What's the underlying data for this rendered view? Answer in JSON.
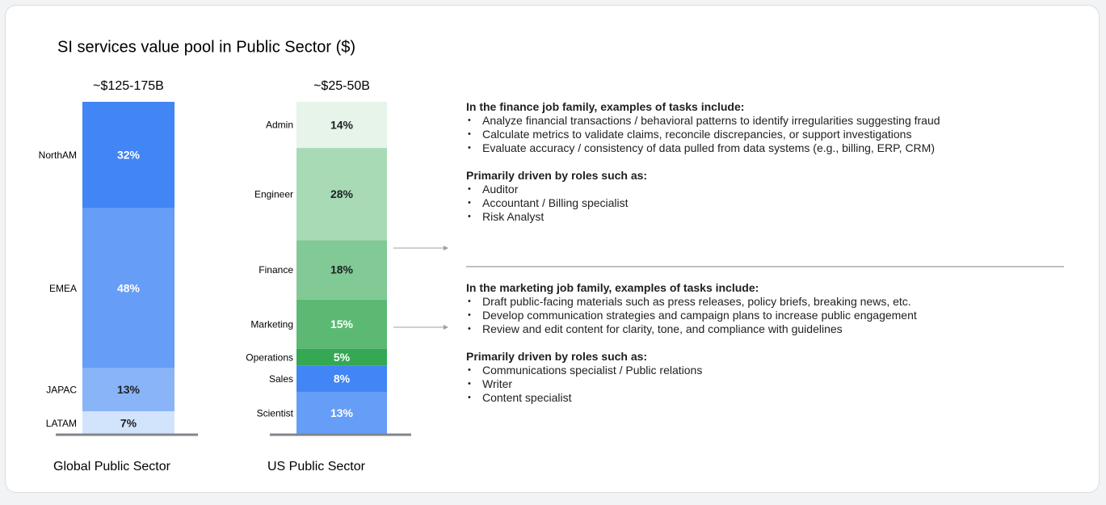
{
  "title": "SI services value pool in Public Sector ($)",
  "chart_data": [
    {
      "type": "stacked_bar",
      "total_label": "~$125-175B",
      "xlabel": "Global Public Sector",
      "categories": [
        "NorthAM",
        "EMEA",
        "JAPAC",
        "LATAM"
      ],
      "values": [
        32,
        48,
        13,
        7
      ],
      "value_labels": [
        "32%",
        "48%",
        "13%",
        "7%"
      ],
      "colors": [
        "#4285f4",
        "#669df6",
        "#8ab4f8",
        "#d2e3fc"
      ]
    },
    {
      "type": "stacked_bar",
      "total_label": "~$25-50B",
      "xlabel": "US Public Sector",
      "categories": [
        "Admin",
        "Engineer",
        "Finance",
        "Marketing",
        "Operations",
        "Sales",
        "Scientist"
      ],
      "values": [
        14,
        28,
        18,
        15,
        5,
        8,
        13
      ],
      "value_labels": [
        "14%",
        "28%",
        "18%",
        "15%",
        "5%",
        "8%",
        "13%"
      ],
      "colors": [
        "#e6f4ea",
        "#a8dab5",
        "#81c995",
        "#5bb974",
        "#34a853",
        "#4285f4",
        "#669df6"
      ]
    }
  ],
  "details": [
    {
      "tasks_heading": "In the finance job family, examples of tasks include:",
      "tasks": [
        "Analyze financial transactions / behavioral patterns to identify irregularities suggesting fraud",
        "Calculate metrics to validate claims, reconcile discrepancies, or support investigations",
        "Evaluate accuracy / consistency of data pulled from data systems (e.g., billing, ERP, CRM)"
      ],
      "roles_heading": "Primarily driven by roles such as:",
      "roles": [
        "Auditor",
        "Accountant / Billing specialist",
        "Risk Analyst"
      ]
    },
    {
      "tasks_heading": "In the marketing job family, examples of tasks include:",
      "tasks": [
        "Draft public-facing materials such as press releases, policy briefs, breaking news, etc.",
        "Develop communication strategies and campaign plans to increase public engagement",
        "Review and edit content for clarity, tone, and compliance with guidelines"
      ],
      "roles_heading": "Primarily driven by roles such as:",
      "roles": [
        "Communications specialist / Public relations",
        "Writer",
        "Content specialist"
      ]
    }
  ]
}
